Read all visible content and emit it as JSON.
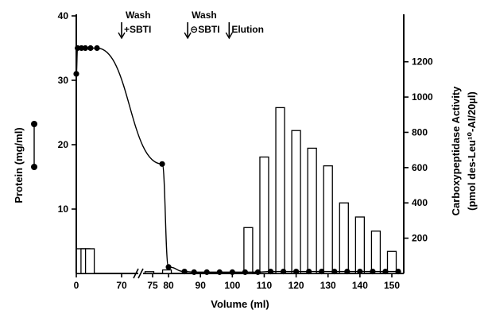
{
  "chart_data": {
    "type": "bar",
    "xlabel": "Volume (ml)",
    "ylabel_left": "Protein (mg/ml)",
    "ylabel_right_line1": "Carboxypeptidase Activity",
    "ylabel_right_line2": "(pmol des-Leu¹⁰-AI/20µl)",
    "x_tick_labels": [
      "0",
      "70",
      "75",
      "80",
      "90",
      "100",
      "110",
      "120",
      "130",
      "140",
      "150"
    ],
    "left_axis": {
      "ylim": [
        0,
        40
      ],
      "ticks": [
        "10",
        "20",
        "30",
        "40"
      ]
    },
    "right_axis": {
      "ylim": [
        0,
        1460
      ],
      "ticks": [
        "200",
        "400",
        "600",
        "800",
        "1000",
        "1200"
      ]
    },
    "annotations": [
      {
        "line1": "Wash",
        "line2": "+SBTI",
        "x_ml": 70
      },
      {
        "line1": "Wash",
        "line2": "⊖SBTI",
        "x_ml": 86
      },
      {
        "line1": "",
        "line2": "Elution",
        "x_ml": 99
      }
    ],
    "series": [
      {
        "kind": "line",
        "axis": "left",
        "points": [
          [
            0,
            31
          ],
          [
            2,
            35
          ],
          [
            8,
            35
          ],
          [
            14,
            35
          ],
          [
            22,
            35
          ],
          [
            32,
            35
          ],
          [
            78,
            17
          ],
          [
            80,
            1
          ],
          [
            85,
            0.3
          ],
          [
            88,
            0.2
          ],
          [
            92,
            0.2
          ],
          [
            96,
            0.2
          ],
          [
            100,
            0.2
          ],
          [
            104,
            0.2
          ],
          [
            108,
            0.2
          ],
          [
            112,
            0.3
          ],
          [
            116,
            0.3
          ],
          [
            120,
            0.3
          ],
          [
            124,
            0.3
          ],
          [
            128,
            0.3
          ],
          [
            132,
            0.3
          ],
          [
            136,
            0.3
          ],
          [
            140,
            0.3
          ],
          [
            144,
            0.3
          ],
          [
            148,
            0.3
          ],
          [
            152,
            0.3
          ]
        ]
      },
      {
        "kind": "bar",
        "axis": "right",
        "x": [
          7,
          14,
          21,
          74,
          79.5,
          105,
          110,
          115,
          120,
          125,
          130,
          135,
          140,
          145,
          150
        ],
        "values": [
          140,
          140,
          140,
          10,
          20,
          260,
          660,
          940,
          810,
          710,
          610,
          400,
          320,
          240,
          125
        ]
      }
    ]
  }
}
